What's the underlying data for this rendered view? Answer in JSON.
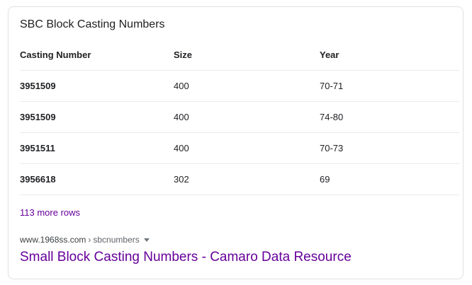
{
  "snippet": {
    "title": "SBC Block Casting Numbers",
    "columns": [
      "Casting Number",
      "Size",
      "Year"
    ],
    "rows": [
      [
        "3951509",
        "400",
        "70-71"
      ],
      [
        "3951509",
        "400",
        "74-80"
      ],
      [
        "3951511",
        "400",
        "70-73"
      ],
      [
        "3956618",
        "302",
        "69"
      ]
    ],
    "more_rows": "113 more rows"
  },
  "result": {
    "domain": "www.1968ss.com",
    "separator": "›",
    "path": "sbcnumbers",
    "title": "Small Block Casting Numbers - Camaro Data Resource"
  },
  "colors": {
    "visited_link": "#660099",
    "text": "#202124",
    "border": "#dfe1e5"
  },
  "icons": {
    "menu": "chevron-down-icon"
  }
}
